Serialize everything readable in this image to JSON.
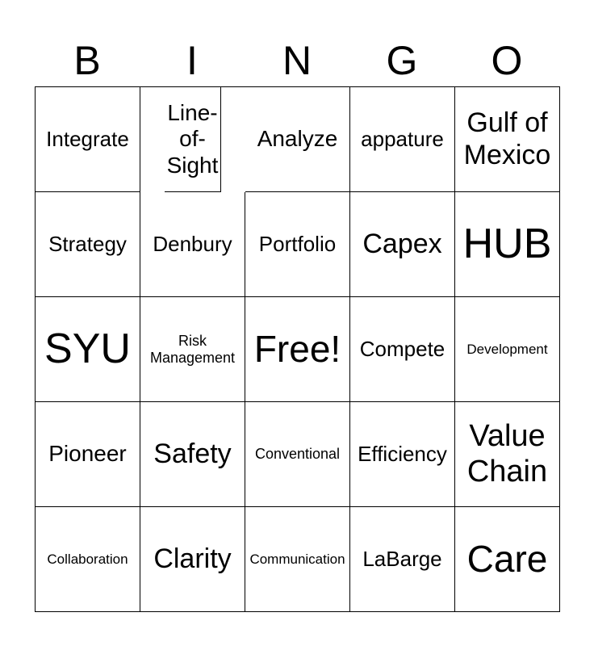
{
  "header": [
    "B",
    "I",
    "N",
    "G",
    "O"
  ],
  "cells": [
    "Integrate",
    "Line-of-Sight",
    "Analyze",
    "appature",
    "Gulf of Mexico",
    "Strategy",
    "Denbury",
    "Portfolio",
    "Capex",
    "HUB",
    "SYU",
    "Risk Management",
    "Free!",
    "Compete",
    "Development",
    "Pioneer",
    "Safety",
    "Conventional",
    "Efficiency",
    "Value Chain",
    "Collaboration",
    "Clarity",
    "Communication",
    "LaBarge",
    "Care"
  ]
}
